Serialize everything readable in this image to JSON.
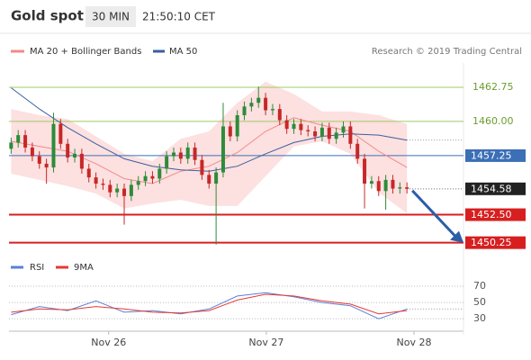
{
  "chart_data": {
    "type": "candlestick",
    "title": "Gold spot",
    "interval": "30 MIN",
    "time": "21:50:10 CET",
    "source": "Research © 2019 Trading Central",
    "up_color": "#2e8b3a",
    "down_color": "#c62828",
    "xlim": [
      -0.3,
      64
    ],
    "xticks": [
      {
        "value": 13.8,
        "label": "Nov 26"
      },
      {
        "value": 36.1,
        "label": "Nov 27"
      },
      {
        "value": 57,
        "label": "Nov 28"
      }
    ],
    "ylim": [
      1449.5,
      1464.7
    ],
    "candles": {
      "x": [
        0,
        1,
        2,
        3,
        4,
        5,
        6,
        7,
        8,
        9,
        10,
        11,
        12,
        13,
        14,
        15,
        16,
        17,
        18,
        19,
        20,
        21,
        22,
        23,
        24,
        25,
        26,
        27,
        28,
        29,
        30,
        31,
        32,
        33,
        34,
        35,
        36,
        37,
        38,
        39,
        40,
        41,
        42,
        43,
        44,
        45,
        46,
        47,
        48,
        49,
        50,
        51,
        52,
        53,
        54,
        55,
        56
      ],
      "open": [
        1457.8,
        1458.3,
        1458.9,
        1457.9,
        1457.2,
        1456.6,
        1456.3,
        1459.8,
        1458.2,
        1457.1,
        1457.4,
        1456.2,
        1455.5,
        1455.0,
        1454.9,
        1454.3,
        1454.6,
        1454.0,
        1454.9,
        1455.2,
        1455.6,
        1455.4,
        1456.2,
        1457.2,
        1457.5,
        1457.0,
        1457.9,
        1456.9,
        1455.7,
        1455.0,
        1455.9,
        1459.6,
        1458.8,
        1460.5,
        1461.2,
        1461.5,
        1461.9,
        1460.9,
        1461.0,
        1460.1,
        1459.4,
        1459.8,
        1459.3,
        1459.2,
        1458.8,
        1459.5,
        1458.6,
        1459.1,
        1459.6,
        1458.2,
        1457.0,
        1455.0,
        1455.2,
        1454.4,
        1455.3,
        1454.6,
        1454.7
      ],
      "high": [
        1458.7,
        1459.3,
        1459.3,
        1458.3,
        1457.6,
        1457.0,
        1460.7,
        1460.2,
        1458.6,
        1457.8,
        1457.8,
        1456.6,
        1455.9,
        1455.4,
        1455.3,
        1455.0,
        1455.0,
        1455.3,
        1455.6,
        1456.0,
        1456.0,
        1456.6,
        1457.6,
        1457.9,
        1457.9,
        1458.3,
        1458.3,
        1457.3,
        1456.1,
        1456.3,
        1461.5,
        1460.0,
        1460.9,
        1461.6,
        1461.9,
        1462.8,
        1462.3,
        1461.4,
        1461.4,
        1460.5,
        1460.2,
        1460.2,
        1459.7,
        1459.6,
        1459.9,
        1459.9,
        1459.5,
        1460.0,
        1460.0,
        1458.6,
        1457.4,
        1455.6,
        1455.6,
        1455.7,
        1455.7,
        1455.1,
        1455.1
      ],
      "low": [
        1457.4,
        1457.9,
        1457.5,
        1456.8,
        1456.2,
        1455.0,
        1455.9,
        1457.8,
        1456.7,
        1456.7,
        1455.8,
        1455.1,
        1454.6,
        1454.5,
        1453.9,
        1453.9,
        1451.7,
        1453.6,
        1454.5,
        1454.8,
        1455.0,
        1455.0,
        1455.8,
        1456.8,
        1456.6,
        1456.6,
        1456.5,
        1455.3,
        1454.6,
        1450.1,
        1455.5,
        1458.4,
        1458.4,
        1460.1,
        1460.8,
        1461.1,
        1460.5,
        1460.5,
        1459.7,
        1459.0,
        1459.0,
        1458.9,
        1458.8,
        1458.4,
        1458.4,
        1458.2,
        1458.2,
        1458.7,
        1457.8,
        1456.6,
        1453.0,
        1454.6,
        1454.0,
        1452.9,
        1454.2,
        1454.2,
        1454.2
      ],
      "close": [
        1458.3,
        1458.9,
        1457.9,
        1457.2,
        1456.6,
        1456.3,
        1459.8,
        1458.2,
        1457.1,
        1457.4,
        1456.2,
        1455.5,
        1455.0,
        1454.9,
        1454.3,
        1454.6,
        1454.0,
        1454.9,
        1455.2,
        1455.6,
        1455.4,
        1456.2,
        1457.2,
        1457.5,
        1457.0,
        1457.9,
        1456.9,
        1455.7,
        1455.0,
        1455.9,
        1459.6,
        1458.8,
        1460.5,
        1461.2,
        1461.5,
        1461.9,
        1460.9,
        1461.0,
        1460.1,
        1459.4,
        1459.8,
        1459.3,
        1459.2,
        1458.8,
        1459.5,
        1458.6,
        1459.1,
        1459.6,
        1458.2,
        1457.0,
        1455.0,
        1455.2,
        1454.4,
        1455.3,
        1454.6,
        1454.7,
        1454.58
      ]
    },
    "overlays": [
      {
        "name": "MA 20 + Bollinger Bands",
        "color": "#f08a8a",
        "band_color": "#fde0e0",
        "x": [
          0,
          4,
          8,
          12,
          16,
          20,
          24,
          28,
          32,
          36,
          40,
          44,
          48,
          52,
          56
        ],
        "values": [
          1458.4,
          1458.0,
          1457.6,
          1456.6,
          1455.4,
          1455.0,
          1456.0,
          1456.4,
          1457.5,
          1459.2,
          1460.3,
          1459.7,
          1459.2,
          1457.6,
          1456.3
        ],
        "upper": [
          1461.0,
          1460.5,
          1460.2,
          1458.8,
          1457.4,
          1456.8,
          1458.6,
          1459.2,
          1461.5,
          1463.2,
          1462.2,
          1460.8,
          1460.8,
          1460.5,
          1459.8
        ],
        "lower": [
          1455.8,
          1455.3,
          1454.8,
          1454.2,
          1453.0,
          1453.4,
          1453.7,
          1453.2,
          1453.2,
          1455.6,
          1458.0,
          1458.4,
          1457.4,
          1454.3,
          1452.6
        ]
      },
      {
        "name": "MA 50",
        "color": "#3a5f9f",
        "x": [
          0,
          4,
          8,
          12,
          16,
          20,
          24,
          28,
          32,
          36,
          40,
          44,
          48,
          52,
          56
        ],
        "values": [
          1462.7,
          1461.0,
          1459.5,
          1458.2,
          1457.0,
          1456.4,
          1456.1,
          1456.0,
          1456.4,
          1457.4,
          1458.3,
          1458.8,
          1459.0,
          1458.9,
          1458.5
        ]
      }
    ],
    "levels": [
      {
        "value": 1462.75,
        "color": "#9ccc65",
        "style": "text"
      },
      {
        "value": 1460,
        "label": "1460.00",
        "color": "#9ccc65",
        "style": "text"
      },
      {
        "value": 1457.25,
        "color": "#3b6fb6",
        "style": "box"
      },
      {
        "value": 1452.5,
        "label": "1452.50",
        "color": "#d71f1f",
        "style": "box"
      },
      {
        "value": 1450.25,
        "color": "#d71f1f",
        "style": "box"
      }
    ],
    "last_price_color": "#222222",
    "target_color": "#2c5ea8",
    "rsi": {
      "ylim": [
        18,
        101
      ],
      "yticks": [
        30,
        50,
        70
      ],
      "series": [
        {
          "name": "RSI",
          "color": "#5b7fd6",
          "x": [
            0,
            4,
            8,
            12,
            16,
            20,
            24,
            28,
            32,
            36,
            40,
            44,
            48,
            52,
            56
          ],
          "values": [
            35,
            45,
            40,
            52,
            38,
            40,
            36,
            42,
            58,
            62,
            57,
            50,
            46,
            30,
            42
          ]
        },
        {
          "name": "9MA",
          "color": "#e53935",
          "x": [
            0,
            4,
            8,
            12,
            16,
            20,
            24,
            28,
            32,
            36,
            40,
            44,
            48,
            52,
            56
          ],
          "values": [
            38,
            42,
            41,
            45,
            42,
            38,
            37,
            40,
            53,
            60,
            58,
            52,
            48,
            36,
            40
          ]
        }
      ]
    }
  }
}
